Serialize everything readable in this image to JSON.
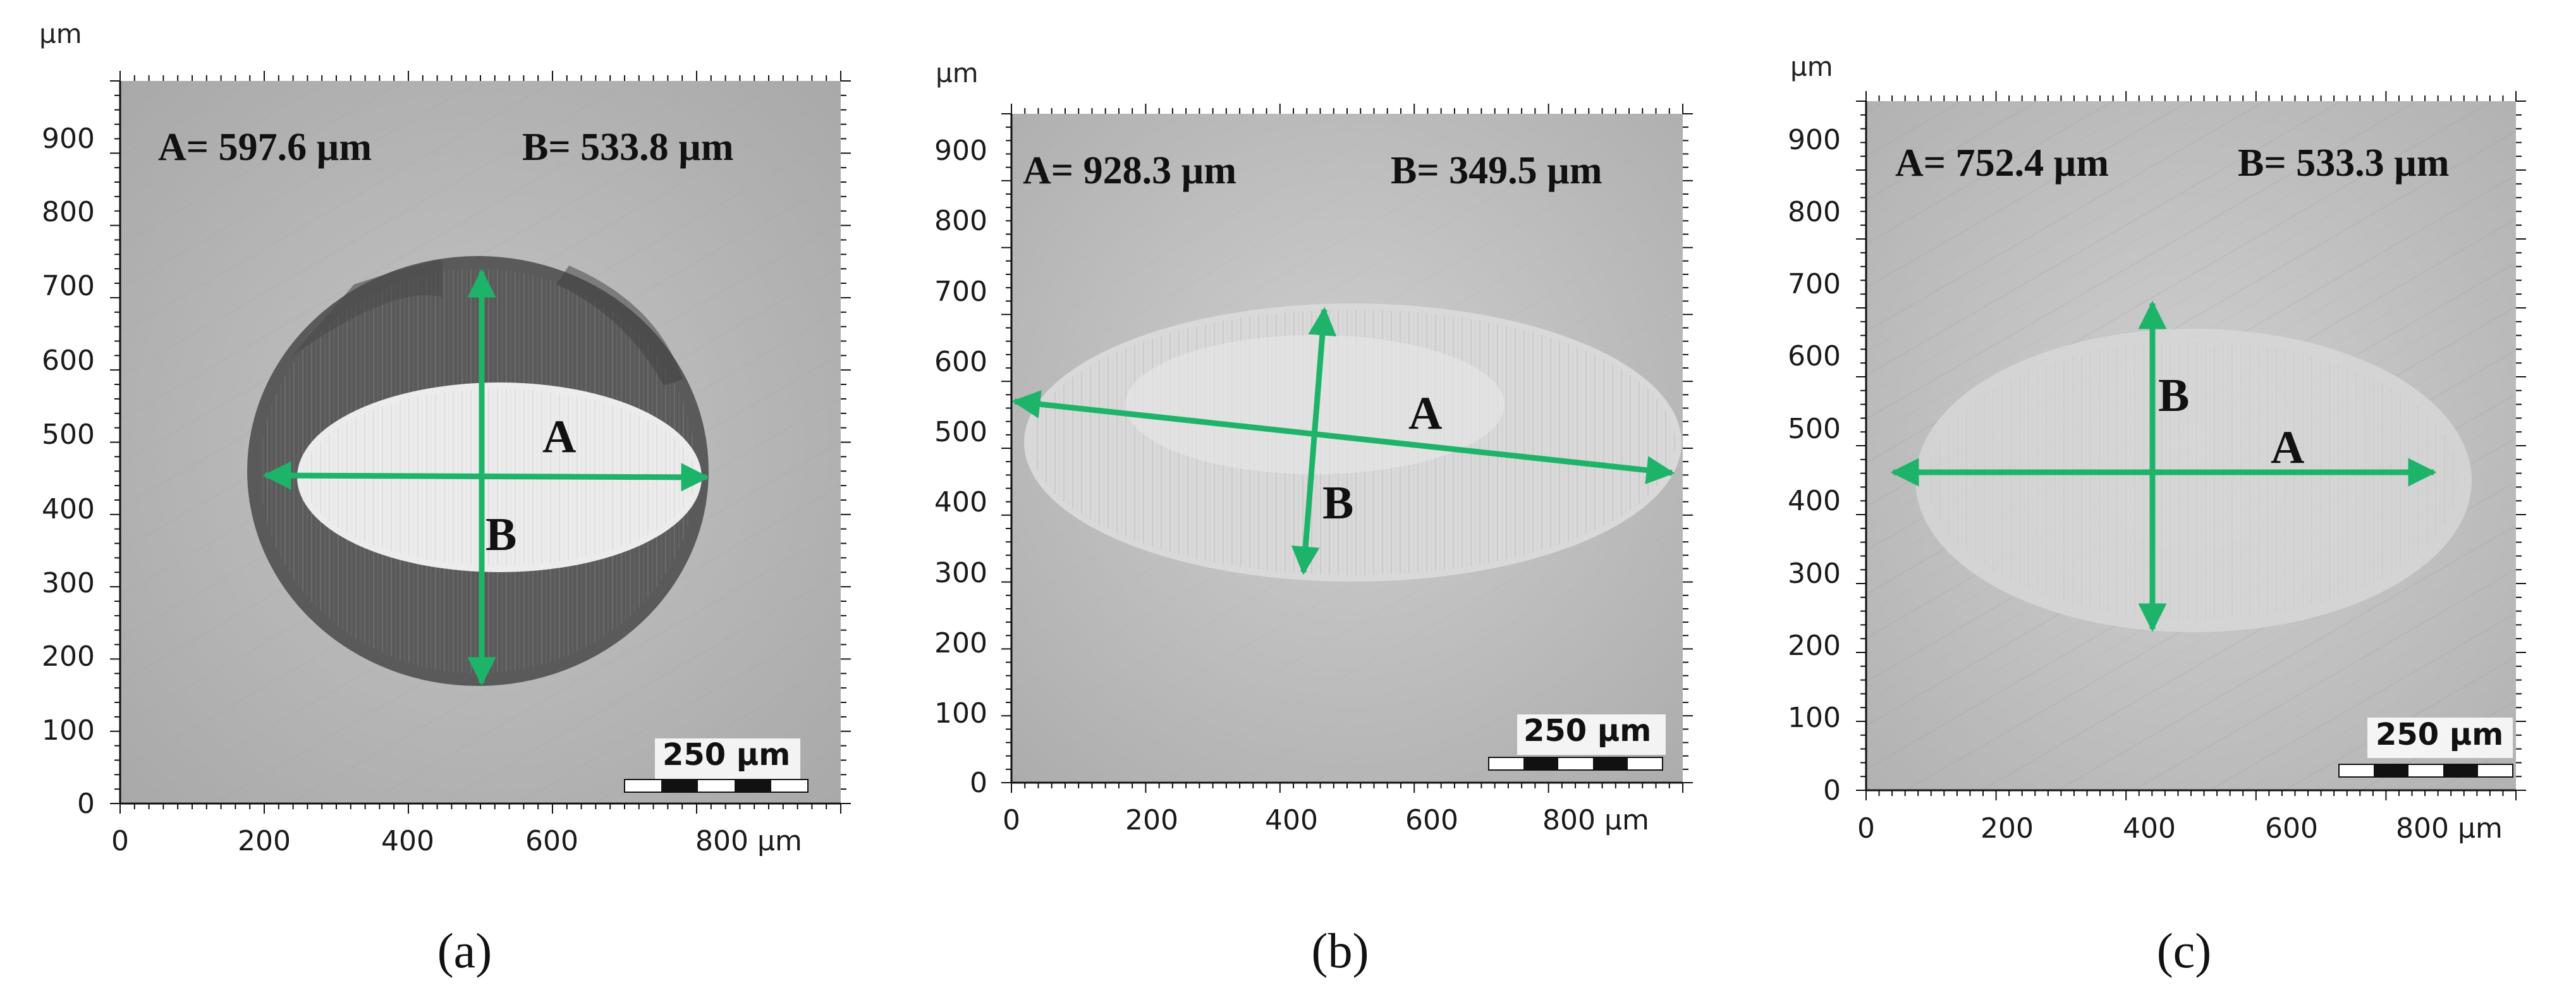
{
  "unit": "µm",
  "scale_bar_label": "250 µm",
  "panels": [
    {
      "id": "a",
      "caption": "(a)",
      "measure_a": "A= 597.6 µm",
      "measure_b": "B= 533.8 µm",
      "arrow_a_label": "A",
      "arrow_b_label": "B",
      "y_ticks": [
        "0",
        "100",
        "200",
        "300",
        "400",
        "500",
        "600",
        "700",
        "800",
        "900"
      ],
      "x_ticks": [
        "0",
        "200",
        "400",
        "600",
        "800 µm"
      ]
    },
    {
      "id": "b",
      "caption": "(b)",
      "measure_a": "A= 928.3 µm",
      "measure_b": "B= 349.5 µm",
      "arrow_a_label": "A",
      "arrow_b_label": "B",
      "y_ticks": [
        "0",
        "100",
        "200",
        "300",
        "400",
        "500",
        "600",
        "700",
        "800",
        "900"
      ],
      "x_ticks": [
        "0",
        "200",
        "400",
        "600",
        "800 µm"
      ]
    },
    {
      "id": "c",
      "caption": "(c)",
      "measure_a": "A= 752.4 µm",
      "measure_b": "B= 533.3 µm",
      "arrow_a_label": "A",
      "arrow_b_label": "B",
      "y_ticks": [
        "0",
        "100",
        "200",
        "300",
        "400",
        "500",
        "600",
        "700",
        "800",
        "900"
      ],
      "x_ticks": [
        "0",
        "200",
        "400",
        "600",
        "800 µm"
      ]
    }
  ],
  "colors": {
    "arrow": "#1db46a",
    "image_bg_a": "#bdbdbd",
    "image_bg_b": "#c4c4c4",
    "image_bg_c": "#c6c6c6"
  }
}
